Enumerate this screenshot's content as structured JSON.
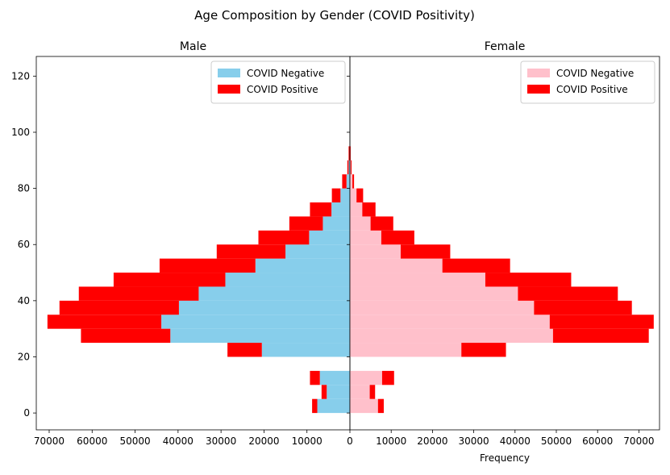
{
  "figure": {
    "suptitle": "Age Composition by Gender (COVID Positivity)"
  },
  "chart_data": [
    {
      "type": "bar",
      "orientation": "horizontal",
      "title": "Male",
      "direction": "mirrored",
      "xlabel": "",
      "ylabel": "",
      "xlim": [
        73000,
        0
      ],
      "ylim": [
        -6,
        127
      ],
      "xticks": [
        70000,
        60000,
        50000,
        40000,
        30000,
        20000,
        10000
      ],
      "yticks": [
        0,
        20,
        40,
        60,
        80,
        100,
        120
      ],
      "bin_width": 5,
      "bins": [
        0,
        5,
        10,
        15,
        20,
        25,
        30,
        35,
        40,
        45,
        50,
        55,
        60,
        65,
        70,
        75,
        80,
        85,
        90,
        95,
        100,
        105,
        110,
        115,
        120
      ],
      "stacked": true,
      "legend": {
        "position": "upper right"
      },
      "series": [
        {
          "name": "COVID Negative",
          "color": "#87ceeb",
          "values": [
            7600,
            5400,
            7000,
            0,
            20500,
            41800,
            43900,
            39800,
            35200,
            29000,
            22000,
            15000,
            9500,
            6300,
            4300,
            2200,
            800,
            300,
            100,
            0,
            0,
            0,
            0,
            0,
            0
          ]
        },
        {
          "name": "COVID Positive",
          "color": "#ff0000",
          "values": [
            1200,
            1200,
            2300,
            0,
            8000,
            20800,
            26500,
            27800,
            27900,
            26000,
            22300,
            16000,
            11800,
            7800,
            5000,
            2000,
            1000,
            300,
            200,
            0,
            0,
            0,
            0,
            0,
            0
          ]
        }
      ]
    },
    {
      "type": "bar",
      "orientation": "horizontal",
      "title": "Female",
      "xlabel": "Frequency",
      "ylabel": "",
      "xlim": [
        0,
        75000
      ],
      "ylim": [
        -6,
        127
      ],
      "xticks": [
        0,
        10000,
        20000,
        30000,
        40000,
        50000,
        60000,
        70000
      ],
      "bin_width": 5,
      "bins": [
        0,
        5,
        10,
        15,
        20,
        25,
        30,
        35,
        40,
        45,
        50,
        55,
        60,
        65,
        70,
        75,
        80,
        85,
        90,
        95,
        100,
        105,
        110,
        115,
        120
      ],
      "stacked": true,
      "legend": {
        "position": "upper right"
      },
      "series": [
        {
          "name": "COVID Negative",
          "color": "#ffc0cb",
          "values": [
            6800,
            4800,
            7800,
            0,
            27000,
            49200,
            48400,
            44600,
            40700,
            32800,
            22400,
            12300,
            7600,
            5000,
            3000,
            1600,
            600,
            200,
            100,
            0,
            0,
            0,
            0,
            0,
            0
          ]
        },
        {
          "name": "COVID Positive",
          "color": "#ff0000",
          "values": [
            1400,
            1300,
            2900,
            0,
            10800,
            23200,
            25200,
            23700,
            24200,
            20800,
            16400,
            12000,
            8000,
            5500,
            3200,
            1600,
            400,
            200,
            100,
            0,
            0,
            0,
            0,
            0,
            0
          ]
        }
      ]
    }
  ]
}
